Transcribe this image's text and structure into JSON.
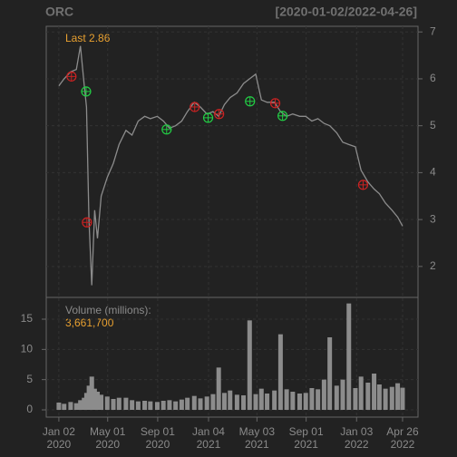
{
  "chart_data": {
    "type": "line",
    "title": "ORC",
    "subtitle": "[2020-01-02/2022-04-26]",
    "last_label": "Last 2.86",
    "x": [
      "2020-01-02",
      "2020-01-15",
      "2020-01-31",
      "2020-02-14",
      "2020-02-24",
      "2020-03-04",
      "2020-03-10",
      "2020-03-16",
      "2020-03-23",
      "2020-03-30",
      "2020-04-06",
      "2020-04-15",
      "2020-04-30",
      "2020-05-15",
      "2020-05-29",
      "2020-06-15",
      "2020-06-30",
      "2020-07-15",
      "2020-07-31",
      "2020-08-14",
      "2020-08-31",
      "2020-09-15",
      "2020-09-30",
      "2020-10-15",
      "2020-10-30",
      "2020-11-13",
      "2020-11-30",
      "2020-12-15",
      "2020-12-31",
      "2021-01-15",
      "2021-01-29",
      "2021-02-12",
      "2021-02-26",
      "2021-03-15",
      "2021-03-31",
      "2021-04-15",
      "2021-04-30",
      "2021-05-14",
      "2021-05-28",
      "2021-06-15",
      "2021-06-30",
      "2021-07-15",
      "2021-07-30",
      "2021-08-16",
      "2021-08-31",
      "2021-09-15",
      "2021-09-30",
      "2021-10-15",
      "2021-10-29",
      "2021-11-15",
      "2021-11-30",
      "2021-12-15",
      "2021-12-31",
      "2022-01-14",
      "2022-01-31",
      "2022-02-15",
      "2022-02-28",
      "2022-03-15",
      "2022-03-31",
      "2022-04-14",
      "2022-04-26"
    ],
    "xlim": [
      "2019-12-02",
      "2022-06-03"
    ],
    "xticks": [
      {
        "value": "2020-01-02",
        "label": "Jan 02\n2020"
      },
      {
        "value": "2020-05-01",
        "label": "May 01\n2020"
      },
      {
        "value": "2020-09-01",
        "label": "Sep 01\n2020"
      },
      {
        "value": "2021-01-04",
        "label": "Jan 04\n2021"
      },
      {
        "value": "2021-05-03",
        "label": "May 03\n2021"
      },
      {
        "value": "2021-09-01",
        "label": "Sep 01\n2021"
      },
      {
        "value": "2022-01-03",
        "label": "Jan 03\n2022"
      },
      {
        "value": "2022-04-26",
        "label": "Apr 26\n2022"
      }
    ],
    "series": [
      {
        "color": "#8c8c8c",
        "values": [
          5.85,
          6.0,
          6.15,
          6.2,
          6.7,
          5.9,
          5.4,
          3.0,
          1.6,
          3.2,
          2.6,
          3.5,
          3.9,
          4.2,
          4.6,
          4.9,
          4.8,
          5.1,
          5.2,
          5.15,
          5.2,
          5.1,
          4.95,
          5.0,
          5.1,
          5.3,
          5.5,
          5.4,
          5.25,
          5.3,
          5.2,
          5.45,
          5.6,
          5.7,
          5.9,
          6.0,
          6.1,
          5.55,
          5.5,
          5.5,
          5.3,
          5.2,
          5.25,
          5.2,
          5.2,
          5.1,
          5.15,
          5.05,
          5.0,
          4.85,
          4.65,
          4.6,
          4.55,
          4.05,
          3.8,
          3.65,
          3.55,
          3.35,
          3.2,
          3.05,
          2.86
        ]
      }
    ],
    "ylim": [
      1.34,
      7.12
    ],
    "yticks": [
      2,
      3,
      4,
      5,
      6,
      7
    ],
    "grid": true,
    "markers": [
      {
        "color": "#cc2222",
        "points": [
          {
            "x": "2020-02-02",
            "y": 6.05
          },
          {
            "x": "2020-03-11",
            "y": 2.94
          },
          {
            "x": "2020-12-01",
            "y": 5.4
          },
          {
            "x": "2021-01-30",
            "y": 5.25
          },
          {
            "x": "2021-06-17",
            "y": 5.48
          },
          {
            "x": "2022-01-19",
            "y": 3.74
          }
        ]
      },
      {
        "color": "#22cc44",
        "points": [
          {
            "x": "2020-03-09",
            "y": 5.73
          },
          {
            "x": "2020-09-23",
            "y": 4.92
          },
          {
            "x": "2021-01-03",
            "y": 5.17
          },
          {
            "x": "2021-04-16",
            "y": 5.52
          },
          {
            "x": "2021-07-05",
            "y": 5.21
          }
        ]
      }
    ],
    "volume": {
      "type": "bar",
      "name": "Volume (millions):",
      "last_label": "3,661,700",
      "color": "#8c8c8c",
      "values": [
        1.2,
        1.0,
        1.3,
        1.1,
        1.6,
        2.0,
        2.8,
        4.0,
        5.5,
        3.5,
        3.0,
        2.5,
        2.2,
        1.8,
        2.0,
        2.0,
        1.6,
        1.4,
        1.5,
        1.4,
        1.3,
        1.5,
        1.6,
        1.4,
        1.7,
        2.0,
        2.3,
        1.9,
        2.2,
        2.6,
        7.0,
        2.8,
        3.2,
        2.5,
        2.4,
        14.8,
        2.6,
        3.5,
        2.7,
        3.2,
        12.5,
        3.4,
        3.0,
        2.7,
        2.8,
        3.6,
        3.4,
        5.0,
        12.0,
        4.0,
        5.0,
        17.6,
        3.6,
        5.5,
        4.5,
        6.0,
        4.2,
        3.5,
        3.8,
        4.4,
        3.66
      ],
      "ylim": [
        -1.2,
        18.6
      ],
      "yticks": [
        0,
        5,
        10,
        15
      ]
    }
  }
}
